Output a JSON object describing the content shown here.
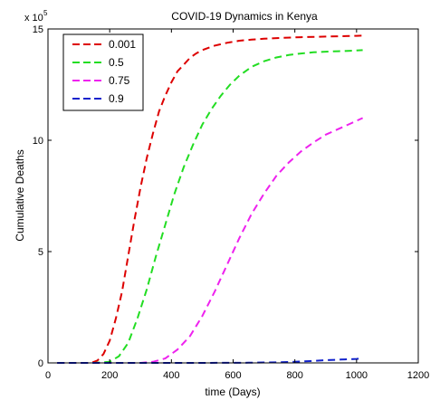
{
  "chart_data": {
    "type": "line",
    "title": "COVID-19 Dynamics in Kenya",
    "xlabel": "time (Days)",
    "ylabel": "Cumulative Deaths",
    "y_multiplier_label": "x 10",
    "y_multiplier_exponent": "5",
    "xlim": [
      0,
      1200
    ],
    "ylim": [
      0,
      15
    ],
    "xticks": [
      0,
      200,
      400,
      600,
      800,
      1000,
      1200
    ],
    "xtick_labels": [
      "0",
      "200",
      "400",
      "600",
      "800",
      "1000",
      "1200"
    ],
    "yticks": [
      0,
      5,
      10,
      15
    ],
    "ytick_labels": [
      "0",
      "5",
      "10",
      "15"
    ],
    "grid": false,
    "legend_position": "top-left",
    "series": [
      {
        "name": "0.001",
        "color": "#dd0000",
        "dash": "dashed",
        "x": [
          30,
          100,
          140,
          160,
          180,
          200,
          220,
          240,
          260,
          280,
          300,
          320,
          340,
          360,
          380,
          400,
          420,
          440,
          460,
          480,
          500,
          540,
          580,
          620,
          660,
          700,
          760,
          820,
          880,
          940,
          1000,
          1020
        ],
        "y": [
          0,
          0,
          0,
          0.1,
          0.4,
          1.0,
          2.0,
          3.2,
          4.8,
          6.4,
          7.9,
          9.2,
          10.3,
          11.3,
          12.0,
          12.6,
          13.1,
          13.4,
          13.7,
          13.9,
          14.05,
          14.25,
          14.38,
          14.47,
          14.52,
          14.56,
          14.6,
          14.63,
          14.65,
          14.67,
          14.69,
          14.7
        ]
      },
      {
        "name": "0.5",
        "color": "#22dd22",
        "dash": "dashed",
        "x": [
          30,
          150,
          200,
          230,
          260,
          290,
          320,
          350,
          380,
          410,
          440,
          470,
          500,
          530,
          560,
          590,
          620,
          660,
          700,
          740,
          780,
          820,
          860,
          900,
          940,
          980,
          1020
        ],
        "y": [
          0,
          0,
          0.05,
          0.3,
          0.9,
          2.0,
          3.3,
          4.8,
          6.2,
          7.6,
          8.8,
          9.8,
          10.7,
          11.4,
          12.0,
          12.5,
          12.9,
          13.3,
          13.55,
          13.72,
          13.83,
          13.9,
          13.95,
          13.98,
          14.0,
          14.02,
          14.05
        ]
      },
      {
        "name": "0.75",
        "color": "#ee22ee",
        "dash": "dashed",
        "x": [
          30,
          300,
          340,
          380,
          420,
          460,
          500,
          540,
          580,
          620,
          660,
          700,
          740,
          780,
          820,
          860,
          900,
          940,
          980,
          1020
        ],
        "y": [
          0,
          0,
          0.05,
          0.2,
          0.6,
          1.2,
          2.1,
          3.2,
          4.4,
          5.6,
          6.7,
          7.6,
          8.4,
          9.0,
          9.5,
          9.9,
          10.25,
          10.5,
          10.75,
          11.0
        ]
      },
      {
        "name": "0.9",
        "color": "#1122cc",
        "dash": "dashed",
        "x": [
          30,
          300,
          500,
          650,
          750,
          800,
          850,
          900,
          950,
          1000,
          1020
        ],
        "y": [
          0,
          0,
          0,
          0.01,
          0.03,
          0.05,
          0.08,
          0.12,
          0.15,
          0.18,
          0.2
        ]
      }
    ]
  }
}
